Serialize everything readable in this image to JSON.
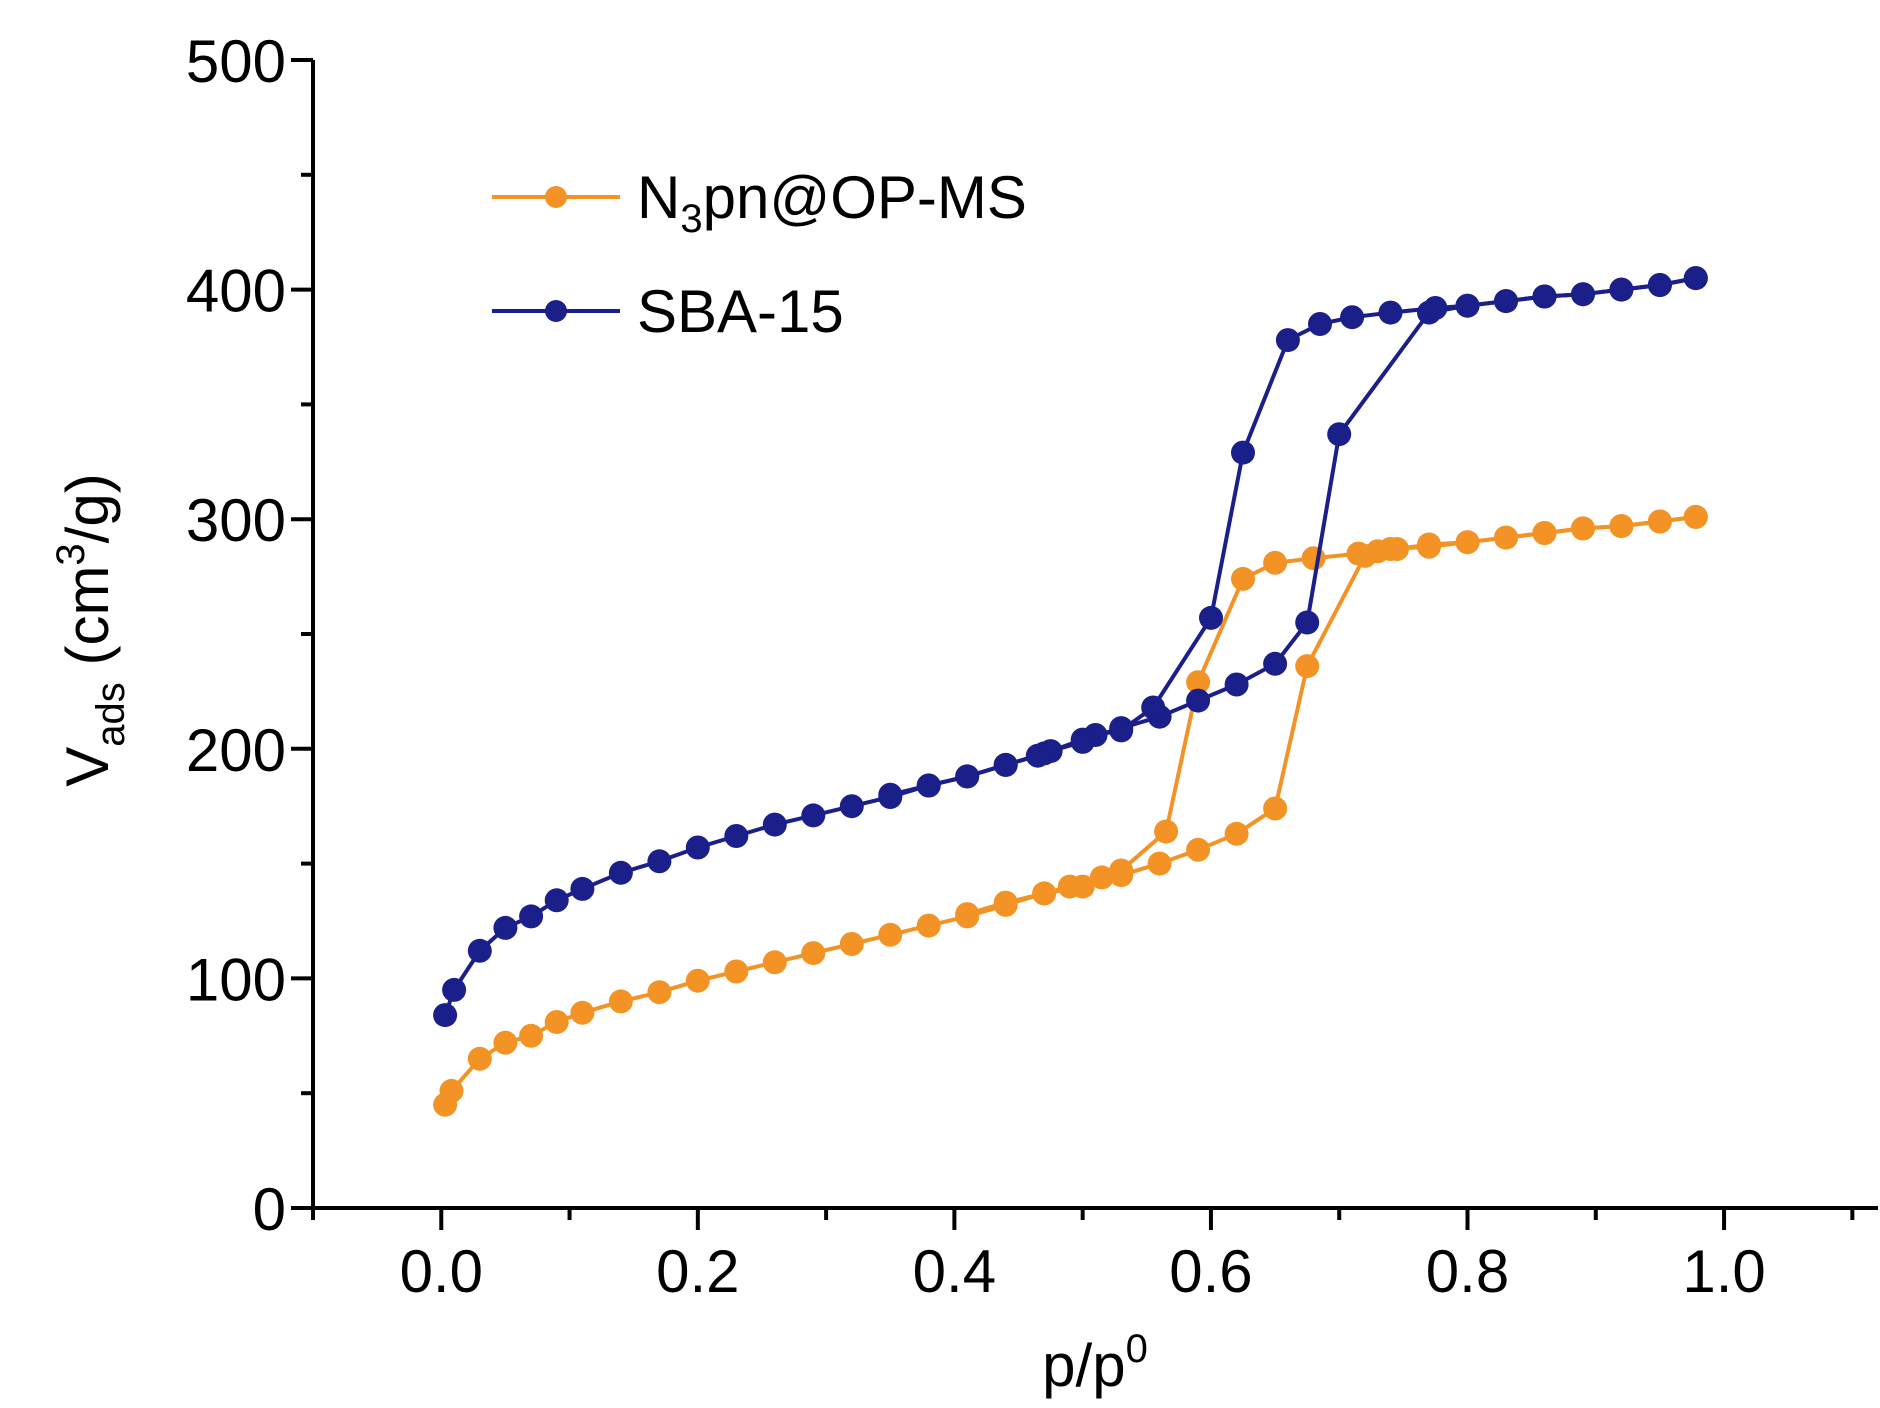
{
  "chart_data": {
    "type": "line",
    "title": "",
    "xlabel": {
      "base": "p/p",
      "sup": "0"
    },
    "ylabel": {
      "base": "V",
      "sub": "ads",
      "rest_open": " (cm",
      "sup": "3",
      "rest_close": "/g)"
    },
    "xlim": [
      -0.1,
      1.12
    ],
    "ylim": [
      0,
      500
    ],
    "x_ticks": [
      "0.0",
      "0.2",
      "0.4",
      "0.6",
      "0.8",
      "1.0"
    ],
    "x_tick_values": [
      0.0,
      0.2,
      0.4,
      0.6,
      0.8,
      1.0
    ],
    "y_ticks": [
      "0",
      "100",
      "200",
      "300",
      "400",
      "500"
    ],
    "y_tick_values": [
      0,
      100,
      200,
      300,
      400,
      500
    ],
    "legend_position": "top-left",
    "series": [
      {
        "name": "N3pn@OP-MS",
        "legend": {
          "base": "N",
          "sub": "3",
          "rest": "pn@OP-MS"
        },
        "color": "#F39325",
        "adsorption": [
          [
            0.003,
            45
          ],
          [
            0.008,
            51
          ],
          [
            0.03,
            65
          ],
          [
            0.05,
            72
          ],
          [
            0.07,
            75
          ],
          [
            0.09,
            81
          ],
          [
            0.11,
            85
          ],
          [
            0.14,
            90
          ],
          [
            0.17,
            94
          ],
          [
            0.2,
            99
          ],
          [
            0.23,
            103
          ],
          [
            0.26,
            107
          ],
          [
            0.29,
            111
          ],
          [
            0.32,
            115
          ],
          [
            0.35,
            119
          ],
          [
            0.38,
            123
          ],
          [
            0.41,
            127
          ],
          [
            0.44,
            132
          ],
          [
            0.47,
            137
          ],
          [
            0.5,
            140
          ],
          [
            0.53,
            145
          ],
          [
            0.56,
            150
          ],
          [
            0.59,
            156
          ],
          [
            0.62,
            163
          ],
          [
            0.65,
            174
          ],
          [
            0.675,
            236
          ],
          [
            0.72,
            284
          ],
          [
            0.74,
            287
          ],
          [
            0.77,
            288
          ],
          [
            0.8,
            290
          ],
          [
            0.83,
            292
          ],
          [
            0.86,
            294
          ],
          [
            0.89,
            296
          ],
          [
            0.92,
            297
          ],
          [
            0.95,
            299
          ],
          [
            0.978,
            301
          ]
        ],
        "desorption": [
          [
            0.978,
            301
          ],
          [
            0.95,
            299
          ],
          [
            0.92,
            297
          ],
          [
            0.89,
            296
          ],
          [
            0.86,
            294
          ],
          [
            0.83,
            292
          ],
          [
            0.8,
            290
          ],
          [
            0.77,
            289
          ],
          [
            0.745,
            287
          ],
          [
            0.73,
            286
          ],
          [
            0.715,
            285
          ],
          [
            0.68,
            283
          ],
          [
            0.65,
            281
          ],
          [
            0.625,
            274
          ],
          [
            0.59,
            229
          ],
          [
            0.565,
            164
          ],
          [
            0.53,
            147
          ],
          [
            0.515,
            144
          ],
          [
            0.49,
            140
          ],
          [
            0.47,
            137
          ],
          [
            0.44,
            133
          ],
          [
            0.41,
            128
          ]
        ]
      },
      {
        "name": "SBA-15",
        "legend": {
          "base": "SBA-15"
        },
        "color": "#1B1F8A",
        "adsorption": [
          [
            0.003,
            84
          ],
          [
            0.01,
            95
          ],
          [
            0.03,
            112
          ],
          [
            0.05,
            122
          ],
          [
            0.07,
            127
          ],
          [
            0.09,
            134
          ],
          [
            0.11,
            139
          ],
          [
            0.14,
            146
          ],
          [
            0.17,
            151
          ],
          [
            0.2,
            157
          ],
          [
            0.23,
            162
          ],
          [
            0.26,
            167
          ],
          [
            0.29,
            171
          ],
          [
            0.32,
            175
          ],
          [
            0.35,
            179
          ],
          [
            0.38,
            184
          ],
          [
            0.41,
            188
          ],
          [
            0.44,
            193
          ],
          [
            0.47,
            198
          ],
          [
            0.5,
            204
          ],
          [
            0.53,
            209
          ],
          [
            0.56,
            214
          ],
          [
            0.59,
            221
          ],
          [
            0.62,
            228
          ],
          [
            0.65,
            237
          ],
          [
            0.675,
            255
          ],
          [
            0.7,
            337
          ],
          [
            0.77,
            390
          ],
          [
            0.8,
            393
          ],
          [
            0.83,
            395
          ],
          [
            0.86,
            397
          ],
          [
            0.89,
            398
          ],
          [
            0.92,
            400
          ],
          [
            0.95,
            402
          ],
          [
            0.978,
            405
          ]
        ],
        "desorption": [
          [
            0.978,
            405
          ],
          [
            0.95,
            402
          ],
          [
            0.92,
            400
          ],
          [
            0.89,
            398
          ],
          [
            0.86,
            397
          ],
          [
            0.83,
            395
          ],
          [
            0.8,
            393
          ],
          [
            0.775,
            392
          ],
          [
            0.74,
            390
          ],
          [
            0.71,
            388
          ],
          [
            0.685,
            385
          ],
          [
            0.66,
            378
          ],
          [
            0.625,
            329
          ],
          [
            0.6,
            257
          ],
          [
            0.555,
            218
          ],
          [
            0.53,
            208
          ],
          [
            0.51,
            206
          ],
          [
            0.5,
            203
          ],
          [
            0.475,
            199
          ],
          [
            0.465,
            197
          ],
          [
            0.44,
            193
          ],
          [
            0.41,
            188
          ],
          [
            0.38,
            184
          ],
          [
            0.35,
            180
          ]
        ]
      }
    ]
  }
}
